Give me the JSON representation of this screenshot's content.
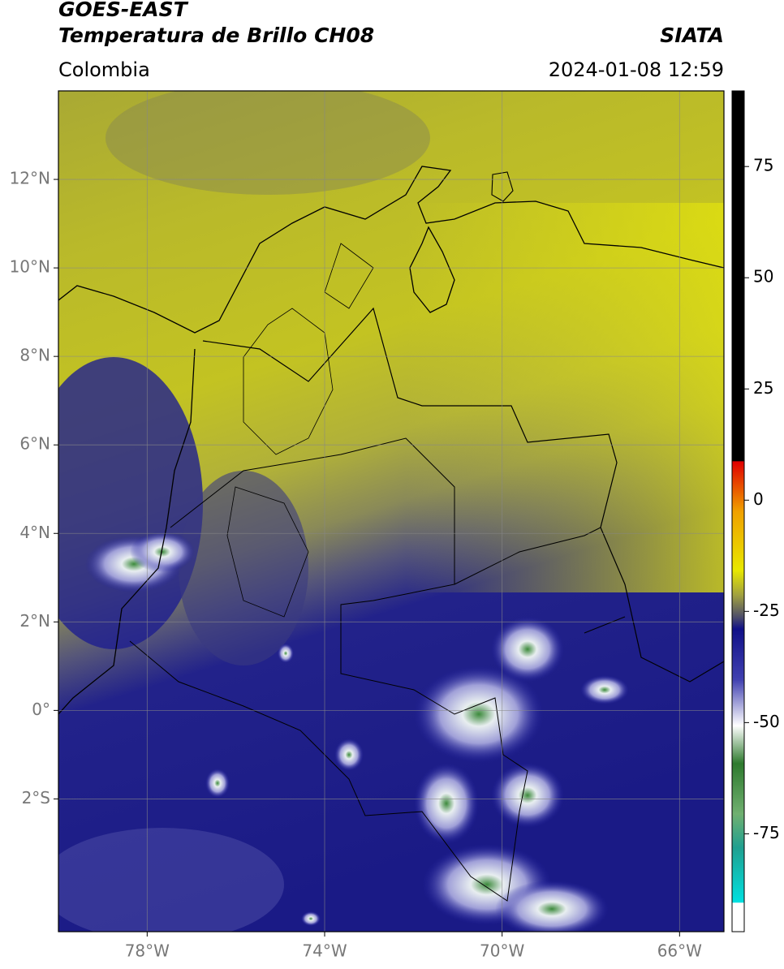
{
  "chart_data": {
    "type": "map",
    "title": "GOES-EAST",
    "subtitle": "Temperatura de Brillo CH08",
    "region": "Colombia",
    "source": "SIATA",
    "timestamp": "2024-01-08 12:59",
    "xlim": [
      -80,
      -65
    ],
    "ylim": [
      -5,
      14
    ],
    "xticks": [
      {
        "value": -78,
        "label": "78°W"
      },
      {
        "value": -74,
        "label": "74°W"
      },
      {
        "value": -70,
        "label": "70°W"
      },
      {
        "value": -66,
        "label": "66°W"
      }
    ],
    "yticks": [
      {
        "value": 12,
        "label": "12°N"
      },
      {
        "value": 10,
        "label": "10°N"
      },
      {
        "value": 8,
        "label": "8°N"
      },
      {
        "value": 6,
        "label": "6°N"
      },
      {
        "value": 4,
        "label": "4°N"
      },
      {
        "value": 2,
        "label": "2°N"
      },
      {
        "value": 0,
        "label": "0°"
      },
      {
        "value": -2,
        "label": "2°S"
      }
    ],
    "grid": true,
    "colorbar": {
      "lim": [
        -97,
        92
      ],
      "ticks": [
        75,
        50,
        25,
        0,
        -25,
        -50,
        -75
      ]
    }
  }
}
